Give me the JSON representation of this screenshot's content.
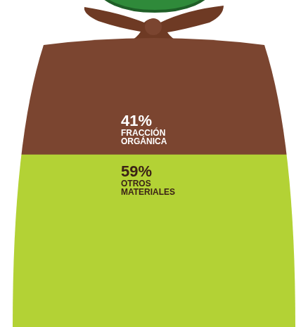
{
  "chart_data": {
    "type": "bar",
    "stacked": true,
    "data_labels": true,
    "tick_labels": false,
    "grid": false,
    "categories": [
      null
    ],
    "ylim": [
      0,
      100
    ],
    "series": [
      {
        "name": "OTROS MATERIALES",
        "color": "#b3d235",
        "values": [
          59
        ],
        "value_labels": [
          "59%"
        ]
      },
      {
        "name": "FRACCIÓN ORGÁNICA",
        "color": "#7b4530",
        "values": [
          41
        ],
        "value_labels": [
          "41%"
        ]
      }
    ]
  }
}
